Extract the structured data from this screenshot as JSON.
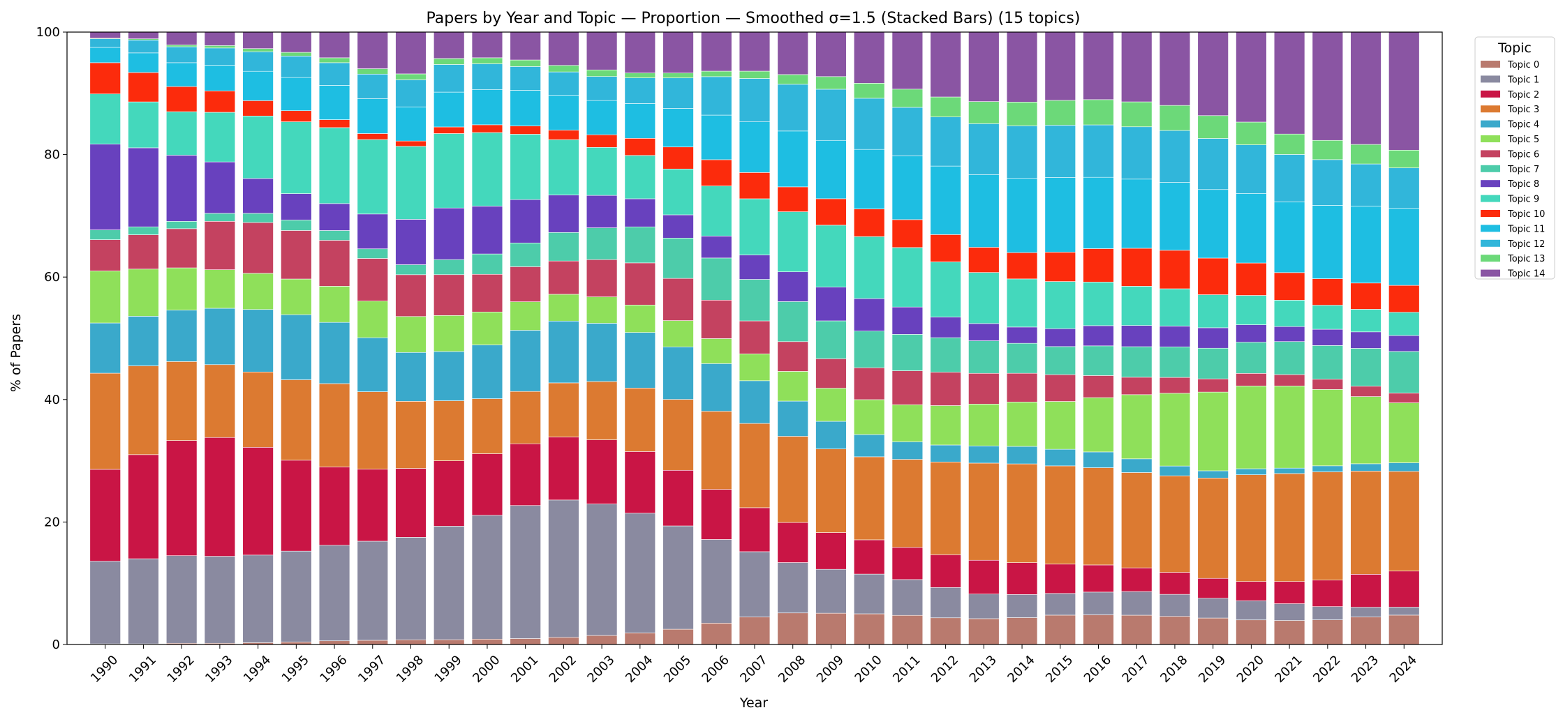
{
  "chart_data": {
    "type": "bar",
    "stacked": true,
    "title": "Papers by Year and Topic — Proportion — Smoothed σ=1.5 (Stacked Bars) (15 topics)",
    "xlabel": "Year",
    "ylabel": "% of Papers",
    "ylim": [
      0,
      100
    ],
    "yticks": [
      "0",
      "20",
      "40",
      "60",
      "80",
      "100"
    ],
    "legend_title": "Topic",
    "legend_position": "outside-top-right",
    "categories": [
      "1990",
      "1991",
      "1992",
      "1993",
      "1994",
      "1995",
      "1996",
      "1997",
      "1998",
      "1999",
      "2000",
      "2001",
      "2002",
      "2003",
      "2004",
      "2005",
      "2006",
      "2007",
      "2008",
      "2009",
      "2010",
      "2011",
      "2012",
      "2013",
      "2014",
      "2015",
      "2016",
      "2017",
      "2018",
      "2019",
      "2020",
      "2021",
      "2022",
      "2023",
      "2024"
    ],
    "series": [
      {
        "name": "Topic 0",
        "color": "#b97a6e",
        "values": [
          0.1,
          0.1,
          0.2,
          0.2,
          0.3,
          0.4,
          0.6,
          0.7,
          0.8,
          0.8,
          0.9,
          1.0,
          1.2,
          1.5,
          1.9,
          2.5,
          3.5,
          4.5,
          5.2,
          5.2,
          5.1,
          4.8,
          4.4,
          4.2,
          4.3,
          4.6,
          4.7,
          4.7,
          4.6,
          4.4,
          4.1,
          4.0,
          4.1,
          4.5,
          4.8
        ]
      },
      {
        "name": "Topic 1",
        "color": "#8a8aa0",
        "values": [
          13.5,
          13.9,
          14.3,
          14.2,
          14.3,
          14.8,
          15.6,
          16.5,
          17.4,
          18.9,
          20.7,
          22.4,
          23.1,
          21.9,
          19.6,
          16.9,
          13.7,
          10.7,
          8.3,
          7.3,
          6.6,
          5.9,
          5.0,
          4.0,
          3.7,
          3.4,
          3.6,
          3.8,
          3.6,
          3.3,
          3.2,
          2.8,
          2.2,
          1.6,
          1.3
        ]
      },
      {
        "name": "Topic 2",
        "color": "#c91545",
        "values": [
          15.0,
          17.0,
          18.8,
          19.4,
          17.6,
          14.8,
          12.8,
          12.0,
          11.7,
          10.9,
          10.3,
          10.4,
          10.6,
          10.7,
          10.1,
          9.1,
          8.2,
          7.2,
          6.6,
          6.1,
          5.7,
          5.3,
          5.4,
          5.5,
          5.1,
          4.6,
          4.3,
          3.8,
          3.6,
          3.3,
          3.2,
          3.7,
          4.4,
          5.4,
          5.9
        ]
      },
      {
        "name": "Topic 3",
        "color": "#dc7a31",
        "values": [
          15.7,
          14.5,
          12.9,
          11.9,
          12.3,
          13.1,
          13.6,
          12.9,
          11.4,
          10.0,
          9.2,
          8.8,
          9.1,
          9.7,
          10.4,
          11.6,
          12.8,
          13.8,
          14.2,
          13.9,
          13.8,
          14.5,
          15.3,
          15.8,
          15.8,
          15.4,
          15.4,
          15.3,
          15.8,
          16.7,
          17.8,
          18.0,
          18.0,
          16.9,
          16.3
        ]
      },
      {
        "name": "Topic 4",
        "color": "#3aa9cb",
        "values": [
          8.2,
          8.1,
          8.4,
          9.2,
          10.2,
          10.6,
          10.0,
          9.0,
          8.3,
          8.2,
          9.0,
          10.3,
          10.4,
          9.7,
          9.1,
          8.6,
          7.8,
          7.0,
          5.8,
          4.6,
          3.7,
          2.9,
          2.8,
          2.8,
          2.8,
          2.6,
          2.5,
          2.2,
          1.6,
          1.2,
          1.0,
          0.9,
          1.0,
          1.2,
          1.4
        ]
      },
      {
        "name": "Topic 5",
        "color": "#8fe05a",
        "values": [
          8.5,
          7.7,
          6.9,
          6.3,
          5.9,
          5.8,
          5.9,
          6.1,
          6.1,
          6.0,
          5.5,
          4.8,
          4.5,
          4.4,
          4.5,
          4.3,
          4.1,
          4.4,
          4.9,
          5.5,
          5.8,
          6.1,
          6.5,
          6.8,
          7.1,
          7.5,
          8.6,
          10.3,
          11.9,
          13.1,
          13.8,
          13.7,
          12.7,
          11.0,
          9.8
        ]
      },
      {
        "name": "Topic 6",
        "color": "#c44260",
        "values": [
          5.1,
          5.6,
          6.4,
          7.9,
          8.3,
          7.9,
          7.5,
          7.1,
          7.1,
          6.8,
          6.3,
          5.9,
          5.6,
          6.2,
          6.9,
          6.9,
          6.3,
          5.4,
          4.9,
          4.9,
          5.3,
          5.6,
          5.5,
          5.0,
          4.6,
          4.2,
          3.5,
          2.8,
          2.6,
          2.2,
          2.1,
          1.9,
          1.7,
          1.7,
          1.6
        ]
      },
      {
        "name": "Topic 7",
        "color": "#4dccaa",
        "values": [
          1.6,
          1.3,
          1.2,
          1.3,
          1.5,
          1.7,
          1.6,
          1.6,
          1.7,
          2.5,
          3.4,
          4.0,
          4.8,
          5.3,
          5.9,
          6.6,
          6.9,
          6.8,
          6.6,
          6.3,
          6.1,
          6.0,
          5.7,
          5.3,
          4.8,
          4.4,
          4.7,
          4.9,
          5.0,
          5.1,
          5.2,
          5.5,
          5.6,
          6.2,
          6.8
        ]
      },
      {
        "name": "Topic 8",
        "color": "#6841be",
        "values": [
          14.0,
          12.9,
          10.8,
          8.4,
          5.7,
          4.3,
          4.4,
          5.8,
          7.7,
          8.6,
          8.0,
          7.3,
          6.3,
          5.4,
          4.6,
          3.8,
          3.6,
          4.0,
          4.9,
          5.6,
          5.4,
          4.5,
          3.4,
          2.8,
          2.6,
          2.8,
          3.2,
          3.4,
          3.4,
          3.4,
          2.9,
          2.5,
          2.7,
          2.7,
          2.6
        ]
      },
      {
        "name": "Topic 9",
        "color": "#44d8bc",
        "values": [
          8.2,
          7.5,
          7.1,
          8.1,
          10.2,
          11.7,
          12.4,
          12.4,
          12.4,
          12.4,
          12.3,
          11.0,
          9.3,
          8.0,
          7.1,
          7.5,
          8.2,
          9.2,
          9.9,
          10.3,
          10.3,
          9.8,
          9.1,
          8.3,
          7.7,
          7.4,
          6.9,
          6.3,
          6.1,
          5.5,
          4.9,
          4.4,
          4.0,
          3.7,
          3.8
        ]
      },
      {
        "name": "Topic 10",
        "color": "#fc2b0c",
        "values": [
          5.1,
          4.8,
          4.1,
          3.5,
          2.5,
          1.8,
          1.3,
          1.0,
          0.9,
          1.1,
          1.3,
          1.4,
          1.6,
          2.1,
          2.8,
          3.6,
          4.3,
          4.3,
          4.1,
          4.4,
          4.6,
          4.6,
          4.5,
          4.1,
          4.2,
          4.6,
          5.3,
          6.1,
          6.3,
          6.1,
          5.4,
          4.6,
          4.4,
          4.3,
          4.4
        ]
      },
      {
        "name": "Topic 11",
        "color": "#1ebee2",
        "values": [
          2.5,
          3.2,
          3.9,
          4.2,
          4.8,
          5.4,
          5.6,
          5.8,
          5.8,
          5.8,
          5.9,
          6.0,
          5.9,
          5.7,
          5.7,
          6.3,
          7.3,
          8.3,
          9.2,
          9.7,
          9.9,
          10.5,
          11.3,
          11.8,
          11.9,
          11.7,
          11.3,
          11.1,
          11.1,
          11.4,
          11.6,
          11.8,
          12.2,
          12.6,
          12.6
        ]
      },
      {
        "name": "Topic 12",
        "color": "#31b6da",
        "values": [
          1.4,
          2.1,
          2.6,
          2.8,
          3.2,
          3.5,
          3.7,
          4.1,
          4.6,
          4.6,
          4.3,
          4.0,
          3.9,
          4.0,
          4.2,
          5.0,
          6.3,
          7.1,
          7.7,
          8.5,
          8.5,
          8.0,
          8.1,
          8.3,
          8.4,
          8.2,
          8.3,
          8.4,
          8.5,
          8.5,
          8.1,
          7.9,
          7.6,
          6.9,
          6.6
        ]
      },
      {
        "name": "Topic 13",
        "color": "#6cd979",
        "values": [
          0.1,
          0.2,
          0.3,
          0.4,
          0.5,
          0.6,
          0.8,
          0.9,
          1.0,
          1.0,
          1.0,
          1.1,
          1.1,
          1.1,
          0.8,
          0.8,
          0.9,
          1.2,
          1.6,
          2.1,
          2.5,
          3.0,
          3.3,
          3.6,
          3.8,
          3.9,
          4.0,
          4.0,
          4.1,
          3.8,
          3.8,
          3.4,
          3.2,
          3.2,
          2.9
        ]
      },
      {
        "name": "Topic 14",
        "color": "#8a55a3",
        "values": [
          1.0,
          1.1,
          2.1,
          2.2,
          2.7,
          3.3,
          4.2,
          6.1,
          7.1,
          4.4,
          4.3,
          4.7,
          5.6,
          6.3,
          6.7,
          6.7,
          6.4,
          6.4,
          7.0,
          7.4,
          8.5,
          9.4,
          10.7,
          11.3,
          11.2,
          10.7,
          10.7,
          11.2,
          12.0,
          13.9,
          15.0,
          17.0,
          18.0,
          18.4,
          19.3
        ]
      }
    ]
  }
}
